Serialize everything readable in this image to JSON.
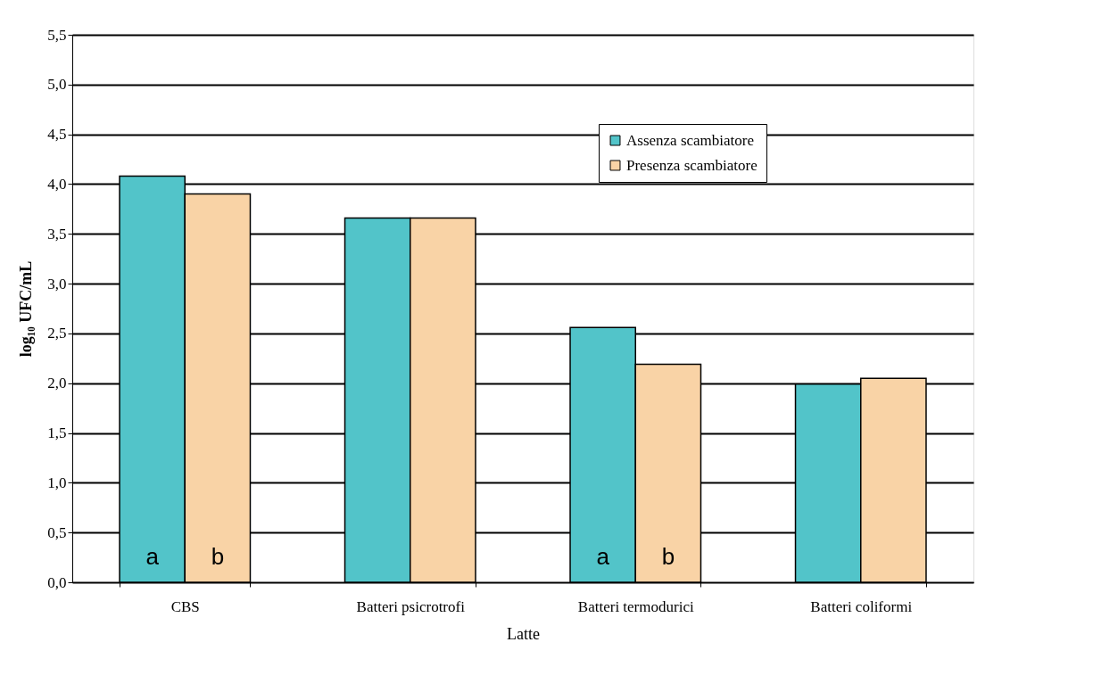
{
  "chart_data": {
    "type": "bar",
    "xlabel": "Latte",
    "ylabel": "log₁₀ UFC/mL",
    "categories": [
      "CBS",
      "Batteri psicrotrofi",
      "Batteri termodurici",
      "Batteri coliformi"
    ],
    "series": [
      {
        "name": "Assenza scambiatore",
        "color": "#52c4c9",
        "values": [
          4.08,
          3.66,
          2.56,
          1.99
        ]
      },
      {
        "name": "Presenza scambiatore",
        "color": "#f9d3a6",
        "values": [
          3.9,
          3.66,
          2.19,
          2.05
        ]
      }
    ],
    "ylim": [
      0,
      5.5
    ],
    "yticks": [
      {
        "value": 0,
        "label": "0,0"
      },
      {
        "value": 0.5,
        "label": "0,5"
      },
      {
        "value": 1,
        "label": "1,0"
      },
      {
        "value": 1.5,
        "label": "1,5"
      },
      {
        "value": 2,
        "label": "2,0"
      },
      {
        "value": 2.5,
        "label": "2,5"
      },
      {
        "value": 3,
        "label": "3,0"
      },
      {
        "value": 3.5,
        "label": "3,5"
      },
      {
        "value": 4,
        "label": "4,0"
      },
      {
        "value": 4.5,
        "label": "4,5"
      },
      {
        "value": 5,
        "label": "5,0"
      },
      {
        "value": 5.5,
        "label": "5,5"
      }
    ],
    "grid": "y",
    "legend": "top right",
    "annotations": [
      {
        "text": "a",
        "x": "CBS",
        "y": 0.25
      },
      {
        "text": "b",
        "x": "CBS",
        "y": 0.25
      },
      {
        "text": "a",
        "x": "Batteri termodurici",
        "y": 0.25
      },
      {
        "text": "b",
        "x": "Batteri termodurici",
        "y": 0.25
      }
    ]
  }
}
